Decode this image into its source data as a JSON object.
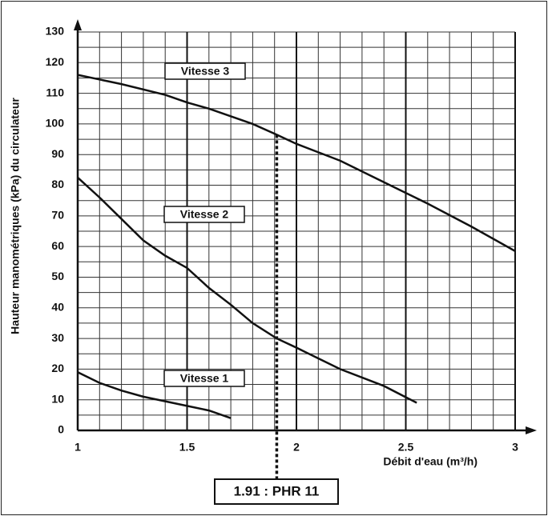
{
  "chart_data": {
    "type": "line",
    "x_label": "Débit d'eau (m³/h)",
    "y_label": "Hauteur manométriques (kPa)  du circulateur",
    "xlim": [
      1,
      3
    ],
    "xticks": [
      1,
      1.5,
      2,
      2.5,
      3
    ],
    "ylim": [
      0,
      130
    ],
    "yticks": [
      0,
      10,
      20,
      30,
      40,
      50,
      60,
      70,
      80,
      90,
      100,
      110,
      120,
      130
    ],
    "grid": true,
    "series": [
      {
        "name": "Vitesse 3",
        "color": "#111111",
        "x": [
          1,
          1.2,
          1.4,
          1.5,
          1.6,
          1.8,
          1.91,
          2,
          2.2,
          2.4,
          2.6,
          2.8,
          3
        ],
        "values": [
          116,
          113,
          109.5,
          107,
          105,
          100,
          96.5,
          93.5,
          88,
          81,
          74,
          66.5,
          58.5
        ]
      },
      {
        "name": "Vitesse 2",
        "color": "#111111",
        "x": [
          1,
          1.1,
          1.2,
          1.3,
          1.4,
          1.5,
          1.6,
          1.7,
          1.8,
          1.91,
          2,
          2.1,
          2.2,
          2.4,
          2.55
        ],
        "values": [
          82.5,
          76,
          69,
          62,
          57,
          53,
          46.5,
          41,
          35,
          30,
          27,
          23.5,
          20,
          14.5,
          9
        ]
      },
      {
        "name": "Vitesse 1",
        "color": "#111111",
        "x": [
          1,
          1.1,
          1.2,
          1.3,
          1.4,
          1.5,
          1.6,
          1.7
        ],
        "values": [
          19,
          15.5,
          13,
          11,
          9.5,
          8,
          6.5,
          4
        ]
      }
    ],
    "annotation": {
      "text": "1.91 : PHR 11",
      "x": 1.91
    }
  }
}
